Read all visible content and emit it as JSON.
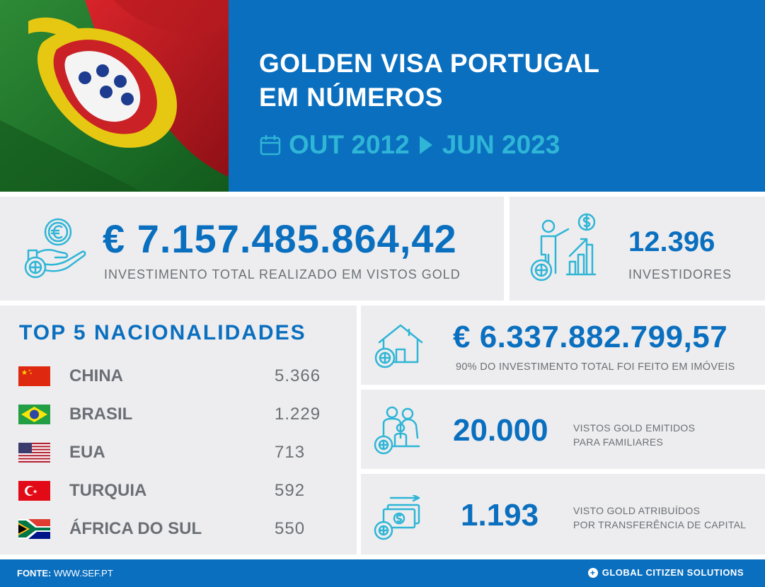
{
  "header": {
    "title_line1": "GOLDEN VISA PORTUGAL",
    "title_line2": "EM NÚMEROS",
    "period_start": "OUT 2012",
    "period_end": "JUN 2023"
  },
  "total_investment": {
    "value": "€ 7.157.485.864,42",
    "label": "INVESTIMENTO TOTAL REALIZADO EM VISTOS GOLD",
    "icon": "hand-euro-coin-icon"
  },
  "investors": {
    "value": "12.396",
    "label": "INVESTIDORES",
    "icon": "investor-growth-chart-icon"
  },
  "top5": {
    "title": "TOP 5 NACIONALIDADES",
    "items": [
      {
        "name": "CHINA",
        "value": "5.366",
        "flag": "china-flag"
      },
      {
        "name": "BRASIL",
        "value": "1.229",
        "flag": "brazil-flag"
      },
      {
        "name": "EUA",
        "value": "713",
        "flag": "usa-flag"
      },
      {
        "name": "TURQUIA",
        "value": "592",
        "flag": "turkey-flag"
      },
      {
        "name": "ÁFRICA DO SUL",
        "value": "550",
        "flag": "south-africa-flag"
      }
    ]
  },
  "real_estate": {
    "value": "€ 6.337.882.799,57",
    "label": "90% DO INVESTIMENTO TOTAL FOI FEITO EM IMÓVEIS",
    "icon": "house-icon"
  },
  "family": {
    "value": "20.000",
    "label_line1": "VISTOS GOLD EMITIDOS",
    "label_line2": "PARA FAMILIARES",
    "icon": "family-icon"
  },
  "capital": {
    "value": "1.193",
    "label_line1": "VISTO GOLD ATRIBUÍDOS",
    "label_line2": "POR TRANSFERÊNCIA DE CAPITAL",
    "icon": "money-transfer-icon"
  },
  "footer": {
    "source_label": "FONTE:",
    "source_value": "WWW.SEF.PT",
    "brand": "GLOBAL CITIZEN SOLUTIONS"
  },
  "colors": {
    "brand_blue": "#0a6fbf",
    "accent_teal": "#2fb5d6",
    "card_gray": "#ededef",
    "text_gray": "#6b6f75"
  }
}
